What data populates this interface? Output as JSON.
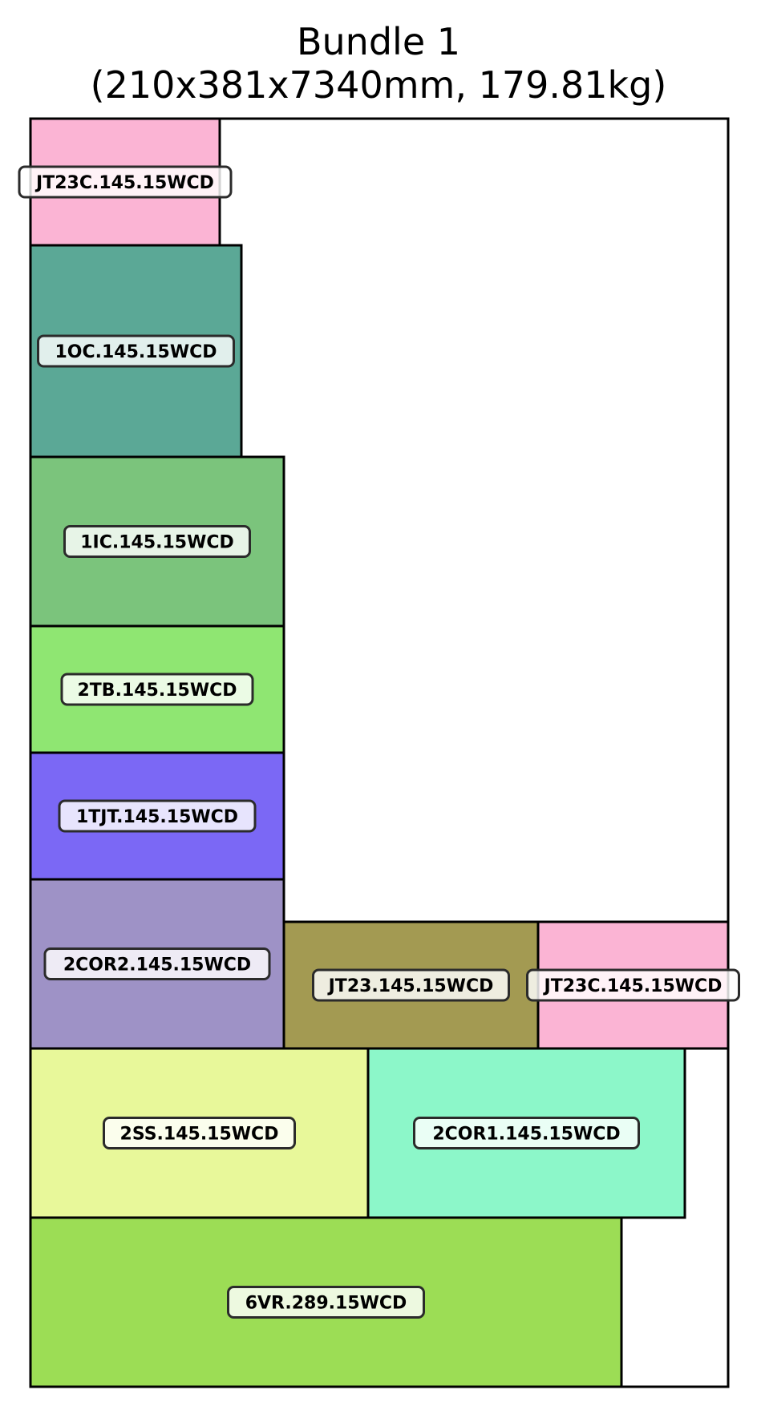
{
  "title": {
    "line1": "Bundle 1",
    "line2": "(210x381x7340mm, 179.81kg)"
  },
  "pieces": [
    {
      "label": "JT23C.145.15WCD",
      "color": "#fbb4d4"
    },
    {
      "label": "1OC.145.15WCD",
      "color": "#5ba896"
    },
    {
      "label": "1IC.145.15WCD",
      "color": "#7bc47c"
    },
    {
      "label": "2TB.145.15WCD",
      "color": "#8fe672"
    },
    {
      "label": "1TJT.145.15WCD",
      "color": "#7b68f5"
    },
    {
      "label": "2COR2.145.15WCD",
      "color": "#9e92c6"
    },
    {
      "label": "JT23.145.15WCD",
      "color": "#a39a52"
    },
    {
      "label": "JT23C.145.15WCD",
      "color": "#fbb4d4"
    },
    {
      "label": "2SS.145.15WCD",
      "color": "#e8f89a"
    },
    {
      "label": "2COR1.145.15WCD",
      "color": "#8cf7c9"
    },
    {
      "label": "6VR.289.15WCD",
      "color": "#9cdd55"
    }
  ]
}
